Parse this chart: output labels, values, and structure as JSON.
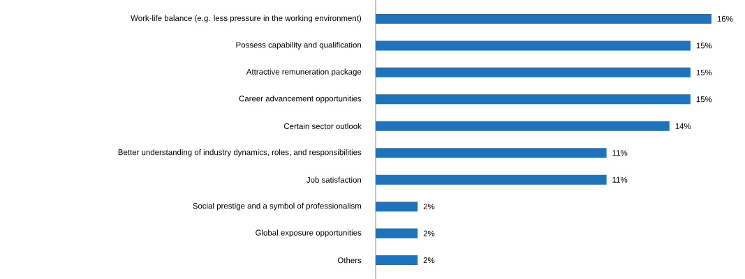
{
  "chart_data": {
    "type": "bar",
    "orientation": "horizontal",
    "categories": [
      "Work-life balance (e.g. less pressure in the working environment)",
      "Possess capability and qualification",
      "Attractive remuneration package",
      "Career advancement opportunities",
      "Certain sector outlook",
      "Better understanding of industry dynamics, roles, and responsibilities",
      "Job satisfaction",
      "Social prestige and a symbol of professionalism",
      "Global exposure opportunities",
      "Others"
    ],
    "values": [
      16,
      15,
      15,
      15,
      14,
      11,
      11,
      2,
      2,
      2
    ],
    "value_labels": [
      "16%",
      "15%",
      "15%",
      "15%",
      "14%",
      "11%",
      "11%",
      "2%",
      "2%",
      "2%"
    ],
    "color": "#1f73bd"
  }
}
